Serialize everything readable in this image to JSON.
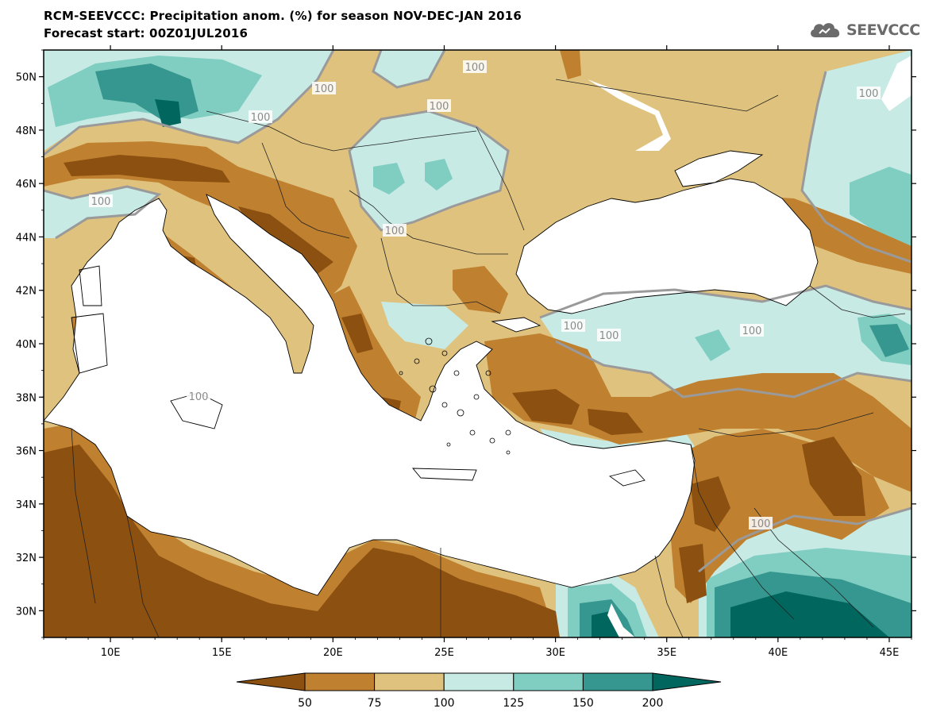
{
  "header": {
    "title": "RCM-SEEVCCC: Precipitation anom. (%) for season NOV-DEC-JAN 2016",
    "subtitle": "Forecast start: 00Z01JUL2016"
  },
  "logo": {
    "text": "SEEVCCC",
    "icon": "cloud-icon"
  },
  "map": {
    "variable": "Precipitation anomaly (%)",
    "lon_range": [
      7,
      46
    ],
    "lat_range": [
      29,
      51
    ],
    "lon_ticks": [
      "10E",
      "15E",
      "20E",
      "25E",
      "30E",
      "35E",
      "40E",
      "45E"
    ],
    "lat_ticks": [
      "50N",
      "48N",
      "46N",
      "44N",
      "42N",
      "40N",
      "38N",
      "36N",
      "34N",
      "32N",
      "30N"
    ],
    "contour_label": "100",
    "colors": {
      "lt50": "#8c5010",
      "50_75": "#bf8030",
      "75_100": "#dfc27d",
      "100_125": "#c7eae5",
      "125_150": "#80cdc1",
      "150_200": "#35978f",
      "gt200": "#01665e",
      "sea": "#ffffff",
      "contour": "#9a9a9a"
    }
  },
  "legend": {
    "labels": [
      "50",
      "75",
      "100",
      "125",
      "150",
      "200"
    ],
    "colors": [
      "#8c5010",
      "#bf8030",
      "#dfc27d",
      "#c7eae5",
      "#80cdc1",
      "#35978f",
      "#01665e"
    ]
  }
}
